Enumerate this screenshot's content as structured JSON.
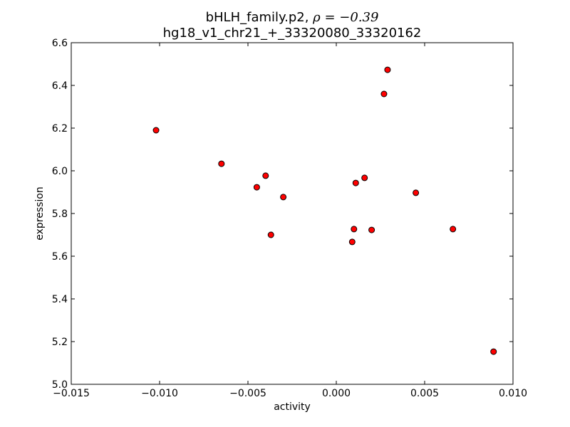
{
  "chart_data": {
    "type": "scatter",
    "title_line1_prefix": "bHLH_family.p2, ",
    "title_line1_math": "ρ = −0.39",
    "title_line2": "hg18_v1_chr21_+_33320080_33320162",
    "xlabel": "activity",
    "ylabel": "expression",
    "xlim": [
      -0.015,
      0.01
    ],
    "ylim": [
      5.0,
      6.6
    ],
    "xticks": [
      -0.015,
      -0.01,
      -0.005,
      0.0,
      0.005,
      0.01
    ],
    "xtick_labels": [
      "−0.015",
      "−0.010",
      "−0.005",
      "0.000",
      "0.005",
      "0.010"
    ],
    "yticks": [
      5.0,
      5.2,
      5.4,
      5.6,
      5.8,
      6.0,
      6.2,
      6.4,
      6.6
    ],
    "ytick_labels": [
      "5.0",
      "5.2",
      "5.4",
      "5.6",
      "5.8",
      "6.0",
      "6.2",
      "6.4",
      "6.6"
    ],
    "grid": false,
    "marker_color": "#ff0000",
    "marker_edge": "#000000",
    "points": [
      {
        "x": -0.0102,
        "y": 6.19
      },
      {
        "x": -0.0065,
        "y": 6.033
      },
      {
        "x": -0.0045,
        "y": 5.923
      },
      {
        "x": -0.004,
        "y": 5.977
      },
      {
        "x": -0.0037,
        "y": 5.7
      },
      {
        "x": -0.003,
        "y": 5.877
      },
      {
        "x": 0.0009,
        "y": 5.667
      },
      {
        "x": 0.001,
        "y": 5.727
      },
      {
        "x": 0.0011,
        "y": 5.943
      },
      {
        "x": 0.0016,
        "y": 5.967
      },
      {
        "x": 0.002,
        "y": 5.723
      },
      {
        "x": 0.0027,
        "y": 6.36
      },
      {
        "x": 0.0029,
        "y": 6.473
      },
      {
        "x": 0.0045,
        "y": 5.897
      },
      {
        "x": 0.0066,
        "y": 5.727
      },
      {
        "x": 0.0089,
        "y": 5.153
      }
    ]
  }
}
